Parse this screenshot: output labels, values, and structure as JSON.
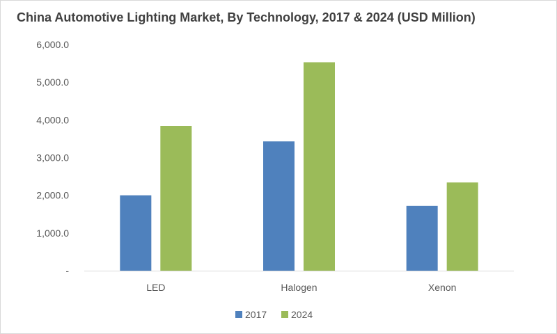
{
  "chart_data": {
    "type": "bar",
    "title": "China Automotive Lighting Market, By Technology, 2017 & 2024 (USD Million)",
    "categories": [
      "LED",
      "Halogen",
      "Xenon"
    ],
    "series": [
      {
        "name": "2017",
        "values": [
          2000,
          3430,
          1720
        ],
        "color": "#4f81bd"
      },
      {
        "name": "2024",
        "values": [
          3840,
          5530,
          2340
        ],
        "color": "#9bbb59"
      }
    ],
    "y_ticks": [
      0,
      1000,
      2000,
      3000,
      4000,
      5000,
      6000
    ],
    "y_tick_labels": [
      "-",
      "1,000.0",
      "2,000.0",
      "3,000.0",
      "4,000.0",
      "5,000.0",
      "6,000.0"
    ],
    "ylim": [
      0,
      6000
    ],
    "xlabel": "",
    "ylabel": "",
    "grid": false,
    "legend_position": "bottom"
  }
}
